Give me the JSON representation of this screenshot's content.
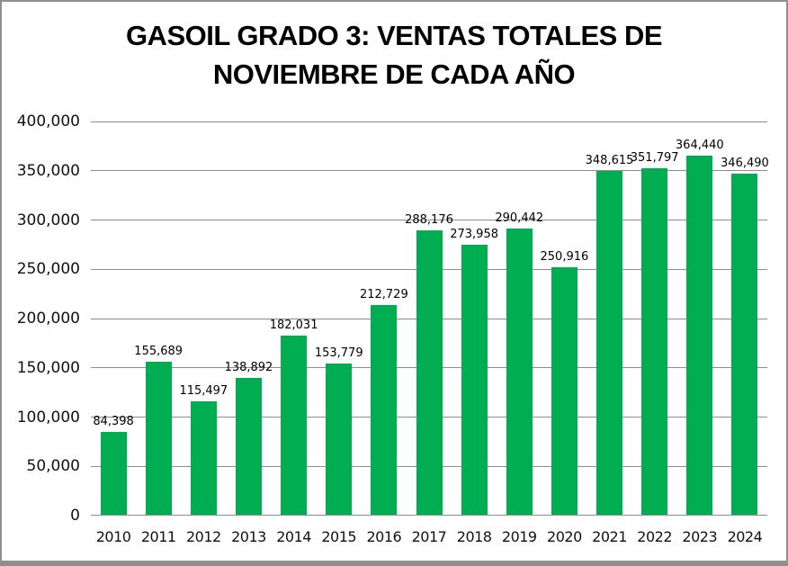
{
  "chart_data": {
    "type": "bar",
    "title": "GASOIL GRADO 3: VENTAS TOTALES DE NOVIEMBRE DE CADA AÑO",
    "title_lines": {
      "line1": "GASOIL GRADO 3: VENTAS TOTALES DE",
      "line2": "NOVIEMBRE DE CADA AÑO"
    },
    "categories": [
      "2010",
      "2011",
      "2012",
      "2013",
      "2014",
      "2015",
      "2016",
      "2017",
      "2018",
      "2019",
      "2020",
      "2021",
      "2022",
      "2023",
      "2024"
    ],
    "values": [
      84398,
      155689,
      115497,
      138892,
      182031,
      153779,
      212729,
      288176,
      273958,
      290442,
      250916,
      348615,
      351797,
      364440,
      346490
    ],
    "value_labels": [
      "84,398",
      "155,689",
      "115,497",
      "138,892",
      "182,031",
      "153,779",
      "212,729",
      "288,176",
      "273,958",
      "290,442",
      "250,916",
      "348,615",
      "351,797",
      "364,440",
      "346,490"
    ],
    "xlabel": "",
    "ylabel": "",
    "ylim": [
      0,
      400000
    ],
    "y_tick_step": 50000,
    "y_tick_labels": [
      "0",
      "50,000",
      "100,000",
      "150,000",
      "200,000",
      "250,000",
      "300,000",
      "350,000",
      "400,000"
    ],
    "grid": true,
    "legend": false,
    "colors": {
      "bar": "#00ad50",
      "gridline": "#8c8c8c",
      "frame_border": "#8f8f8f",
      "text": "#000000",
      "background": "#ffffff"
    }
  }
}
